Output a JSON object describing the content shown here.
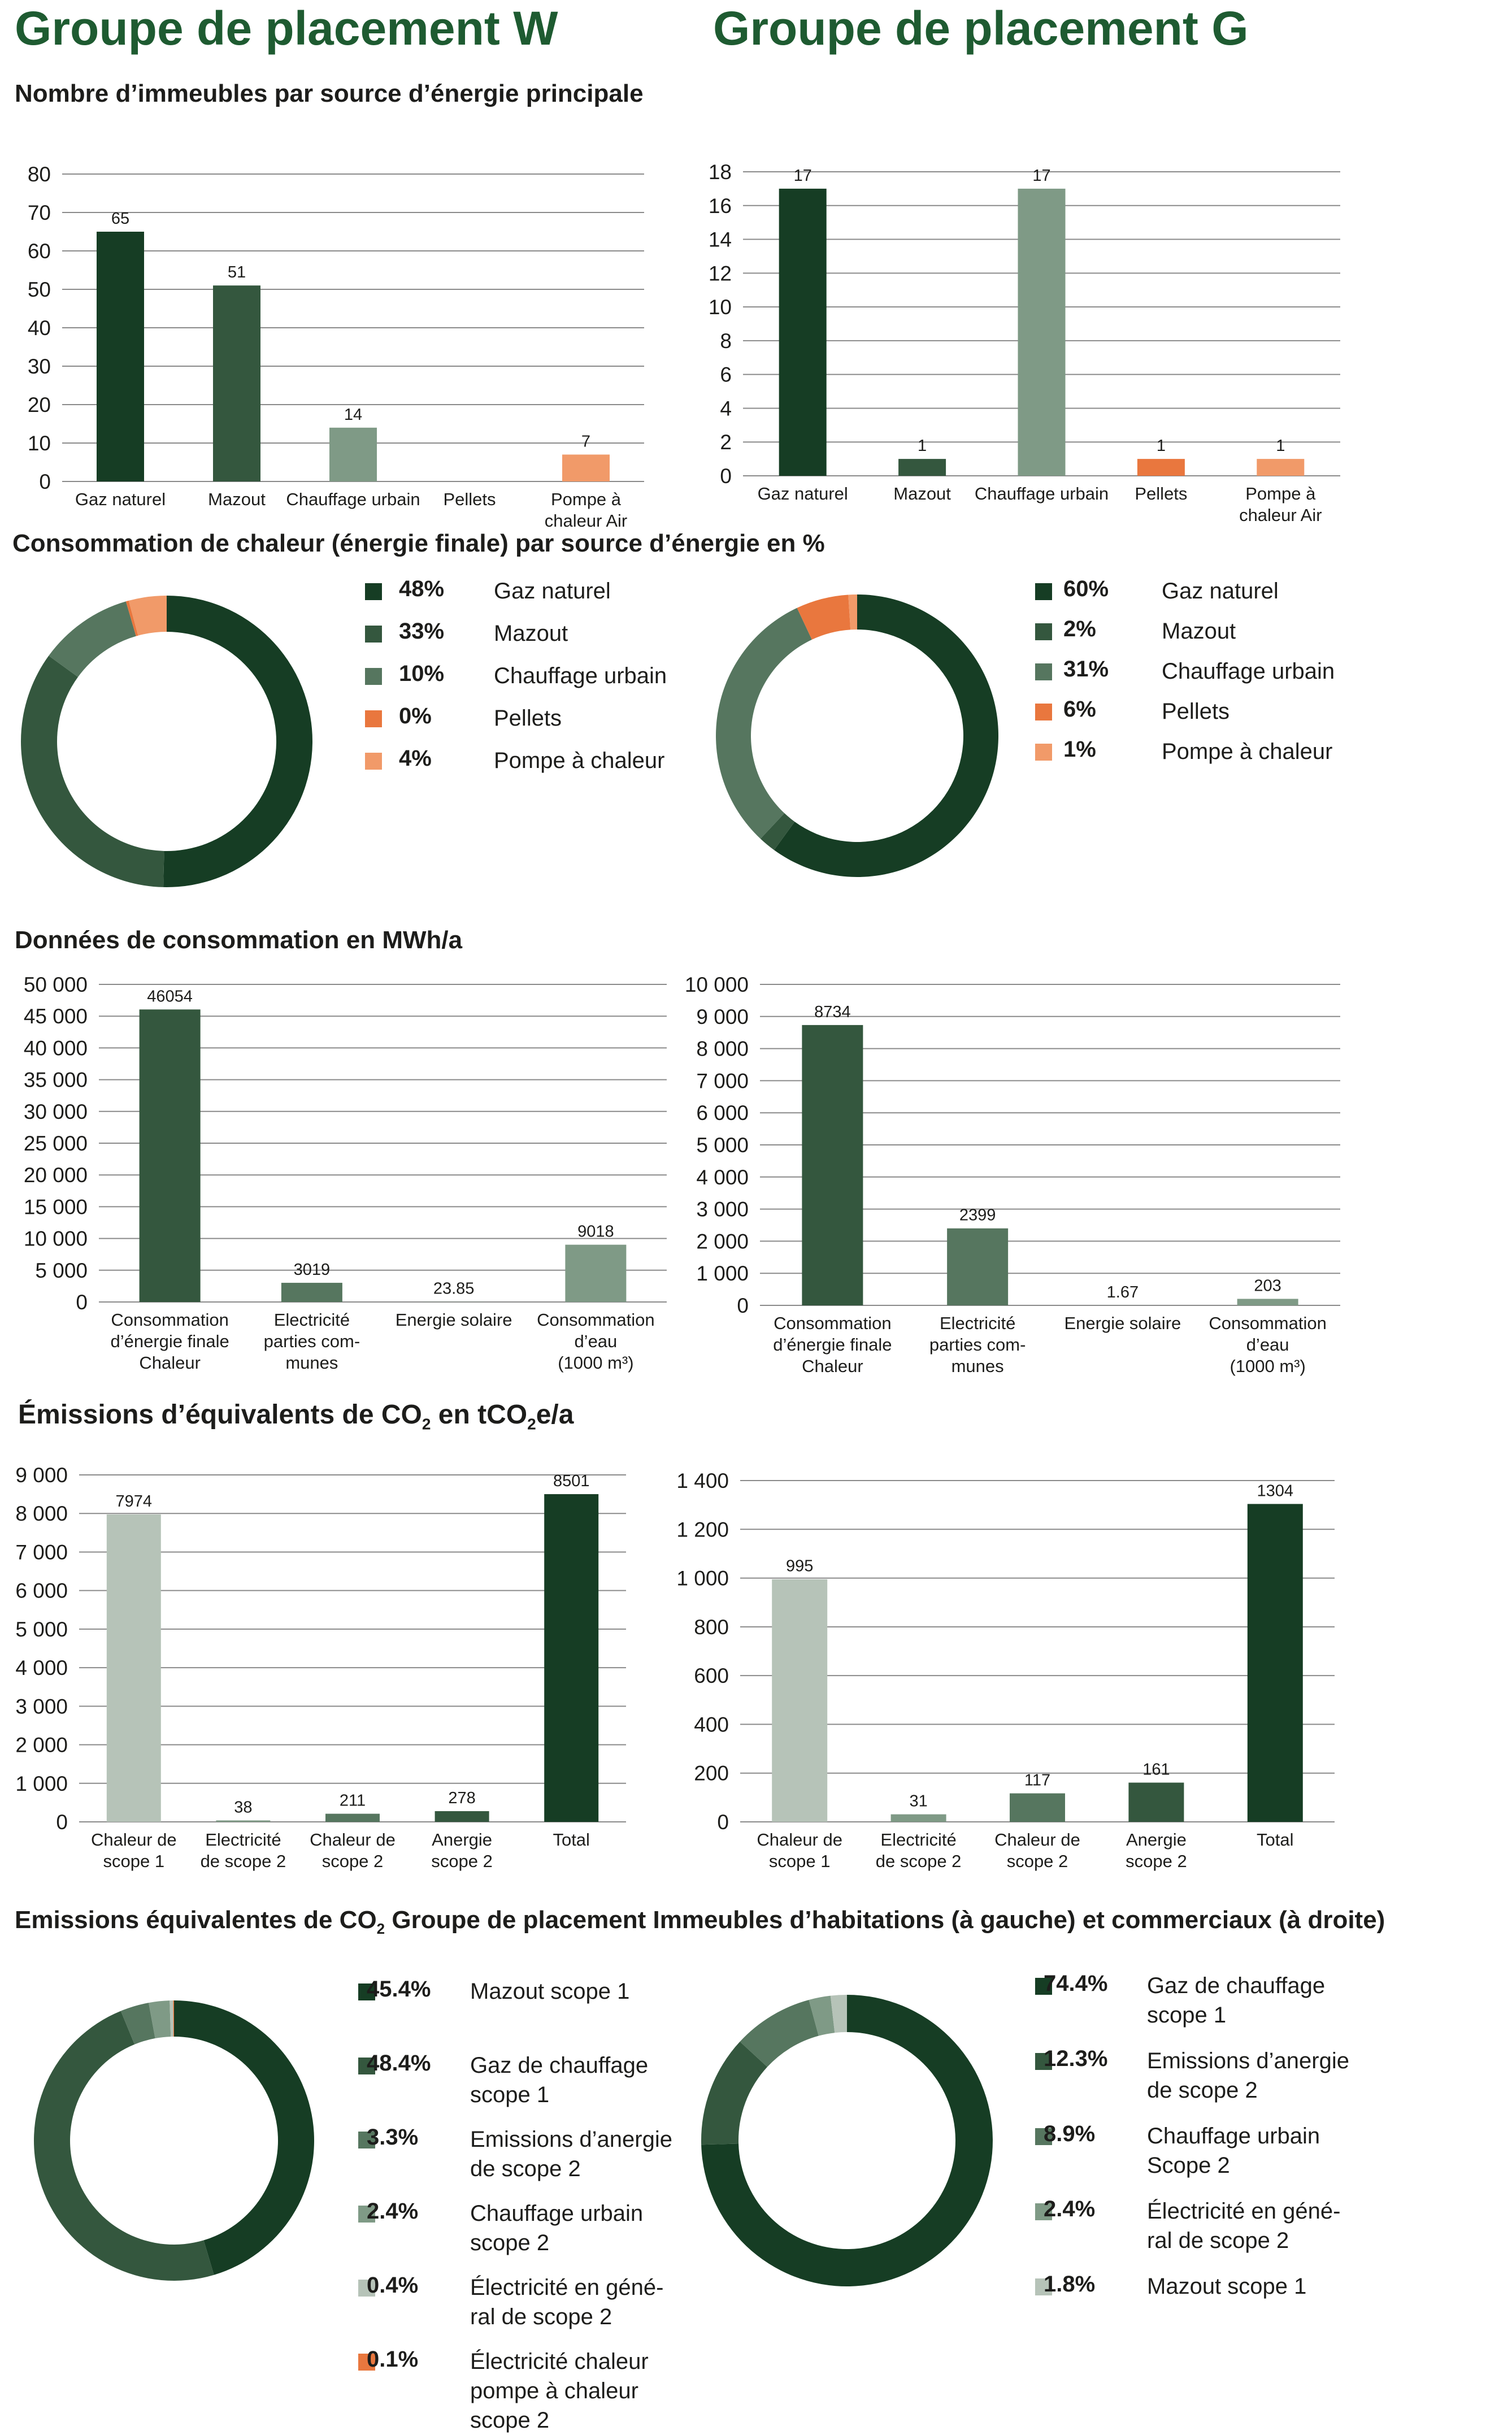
{
  "titles": {
    "left": "Groupe de placement W",
    "right": "Groupe de placement G"
  },
  "sections": {
    "buildings": "Nombre d’immeubles par source d’énergie principale",
    "heat": "Consommation de chaleur (énergie finale) par source d’énergie en %",
    "consumption": "Données de consommation en MWh/a",
    "emissions_prefix": "Émissions d’équivalents de CO",
    "emissions_mid": " en tCO",
    "emissions_suffix": "e/a",
    "emissions_split_prefix": "Emissions équivalentes de CO",
    "emissions_split_suffix": " Groupe de placement Immeubles d’habitations (à gauche) et commerciaux (à droite)",
    "subscript_two": "2"
  },
  "colors": {
    "dark_green": "#163d24",
    "green": "#34573e",
    "mid_green": "#56765f",
    "sage": "#7f9a86",
    "light_sage": "#b6c3b8",
    "orange": "#e9773e",
    "light_orange": "#f19a69"
  },
  "chart_data": [
    {
      "id": "w_buildings",
      "type": "bar",
      "categories": [
        [
          "Gaz naturel"
        ],
        [
          "Mazout"
        ],
        [
          "Chauffage urbain"
        ],
        [
          "Pellets"
        ],
        [
          "Pompe à",
          "chaleur Air"
        ]
      ],
      "values": [
        65,
        51,
        14,
        0,
        7
      ],
      "value_labels": [
        "65",
        "51",
        "14",
        "",
        "7"
      ],
      "colors": [
        "#163d24",
        "#34573e",
        "#7f9a86",
        "#e9773e",
        "#f19a69"
      ],
      "ylim": [
        0,
        80
      ],
      "yticks": [
        0,
        10,
        20,
        30,
        40,
        50,
        60,
        70,
        80
      ],
      "grid": true
    },
    {
      "id": "g_buildings",
      "type": "bar",
      "categories": [
        [
          "Gaz naturel"
        ],
        [
          "Mazout"
        ],
        [
          "Chauffage urbain"
        ],
        [
          "Pellets"
        ],
        [
          "Pompe à",
          "chaleur Air"
        ]
      ],
      "values": [
        17,
        1,
        17,
        1,
        1
      ],
      "value_labels": [
        "17",
        "1",
        "17",
        "1",
        "1"
      ],
      "colors": [
        "#163d24",
        "#34573e",
        "#7f9a86",
        "#e9773e",
        "#f19a69"
      ],
      "ylim": [
        0,
        18
      ],
      "yticks": [
        0,
        2,
        4,
        6,
        8,
        10,
        12,
        14,
        16,
        18
      ],
      "grid": true
    },
    {
      "id": "w_heat",
      "type": "pie",
      "labels": [
        "Gaz naturel",
        "Mazout",
        "Chauffage urbain",
        "Pellets",
        "Pompe à chaleur"
      ],
      "label_text": [
        "48%",
        "33%",
        "10%",
        "0%",
        "4%"
      ],
      "values": [
        48,
        33,
        10,
        0.3,
        4
      ],
      "colors": [
        "#163d24",
        "#34573e",
        "#56765f",
        "#e9773e",
        "#f19a69"
      ]
    },
    {
      "id": "g_heat",
      "type": "pie",
      "labels": [
        "Gaz naturel",
        "Mazout",
        "Chauffage urbain",
        "Pellets",
        "Pompe à chaleur"
      ],
      "label_text": [
        "60%",
        "2%",
        "31%",
        "6%",
        "1%"
      ],
      "values": [
        60,
        2,
        31,
        6,
        1
      ],
      "colors": [
        "#163d24",
        "#34573e",
        "#56765f",
        "#e9773e",
        "#f19a69"
      ]
    },
    {
      "id": "w_consumption",
      "type": "bar",
      "categories": [
        [
          "Consommation",
          "d’énergie finale",
          "Chaleur"
        ],
        [
          "Electricité",
          "parties com-",
          "munes"
        ],
        [
          "Energie solaire"
        ],
        [
          "Consommation",
          "d’eau",
          "(1000 m³)"
        ]
      ],
      "values": [
        46054,
        3019,
        23.85,
        9018
      ],
      "value_labels": [
        "46054",
        "3019",
        "23.85",
        "9018"
      ],
      "colors": [
        "#34573e",
        "#56765f",
        "#7f9a86",
        "#7f9a86"
      ],
      "ylim": [
        0,
        50000
      ],
      "yticks": [
        0,
        5000,
        10000,
        15000,
        20000,
        25000,
        30000,
        35000,
        40000,
        45000,
        50000
      ],
      "ytick_labels": [
        "0",
        "5 000",
        "10 000",
        "15 000",
        "20 000",
        "25 000",
        "30 000",
        "35 000",
        "40 000",
        "45 000",
        "50 000"
      ],
      "grid": true
    },
    {
      "id": "g_consumption",
      "type": "bar",
      "categories": [
        [
          "Consommation",
          "d’énergie finale",
          "Chaleur"
        ],
        [
          "Electricité",
          "parties com-",
          "munes"
        ],
        [
          "Energie solaire"
        ],
        [
          "Consommation",
          "d’eau",
          "(1000 m³)"
        ]
      ],
      "values": [
        8734,
        2399,
        1.67,
        203
      ],
      "value_labels": [
        "8734",
        "2399",
        "1.67",
        "203"
      ],
      "colors": [
        "#34573e",
        "#56765f",
        "#7f9a86",
        "#7f9a86"
      ],
      "ylim": [
        0,
        10000
      ],
      "yticks": [
        0,
        1000,
        2000,
        3000,
        4000,
        5000,
        6000,
        7000,
        8000,
        9000,
        10000
      ],
      "ytick_labels": [
        "0",
        "1 000",
        "2 000",
        "3 000",
        "4 000",
        "5 000",
        "6 000",
        "7 000",
        "8 000",
        "9 000",
        "10 000"
      ],
      "grid": true
    },
    {
      "id": "w_emissions",
      "type": "bar",
      "categories": [
        [
          "Chaleur de",
          "scope 1"
        ],
        [
          "Electricité",
          "de scope 2"
        ],
        [
          "Chaleur de",
          "scope 2"
        ],
        [
          "Anergie",
          "scope 2"
        ],
        [
          "Total"
        ]
      ],
      "values": [
        7974,
        38,
        211,
        278,
        8501
      ],
      "value_labels": [
        "7974",
        "38",
        "211",
        "278",
        "8501"
      ],
      "colors": [
        "#b6c3b8",
        "#7f9a86",
        "#56765f",
        "#34573e",
        "#163d24"
      ],
      "ylim": [
        0,
        9000
      ],
      "yticks": [
        0,
        1000,
        2000,
        3000,
        4000,
        5000,
        6000,
        7000,
        8000,
        9000
      ],
      "ytick_labels": [
        "0",
        "1 000",
        "2 000",
        "3 000",
        "4 000",
        "5 000",
        "6 000",
        "7 000",
        "8 000",
        "9 000"
      ],
      "grid": true
    },
    {
      "id": "g_emissions",
      "type": "bar",
      "categories": [
        [
          "Chaleur de",
          "scope 1"
        ],
        [
          "Electricité",
          "de scope 2"
        ],
        [
          "Chaleur de",
          "scope 2"
        ],
        [
          "Anergie",
          "scope 2"
        ],
        [
          "Total"
        ]
      ],
      "values": [
        995,
        31,
        117,
        161,
        1304
      ],
      "value_labels": [
        "995",
        "31",
        "117",
        "161",
        "1304"
      ],
      "colors": [
        "#b6c3b8",
        "#7f9a86",
        "#56765f",
        "#34573e",
        "#163d24"
      ],
      "ylim": [
        0,
        1400
      ],
      "yticks": [
        0,
        200,
        400,
        600,
        800,
        1000,
        1200,
        1400
      ],
      "ytick_labels": [
        "0",
        "200",
        "400",
        "600",
        "800",
        "1 000",
        "1 200",
        "1 400"
      ],
      "grid": true
    },
    {
      "id": "w_split",
      "type": "pie",
      "labels": [
        "Mazout scope 1",
        "Gaz de chauffage\nscope 1",
        "Emissions d’anergie\nde scope 2",
        "Chauffage urbain\nscope 2",
        "Électricité en géné-\nral de scope 2",
        "Électricité chaleur\npompe à chaleur\nscope 2"
      ],
      "label_text": [
        "45.4%",
        "48.4%",
        "3.3%",
        "2.4%",
        "0.4%",
        "0.1%"
      ],
      "values": [
        45.4,
        48.4,
        3.3,
        2.4,
        0.4,
        0.1
      ],
      "colors": [
        "#163d24",
        "#34573e",
        "#56765f",
        "#7f9a86",
        "#b6c3b8",
        "#e9773e"
      ]
    },
    {
      "id": "g_split",
      "type": "pie",
      "labels": [
        "Gaz de chauffage\nscope 1",
        "Emissions d’anergie\nde scope 2",
        "Chauffage urbain\nScope 2",
        "Électricité en géné-\nral de scope 2",
        "Mazout scope 1"
      ],
      "label_text": [
        "74.4%",
        "12.3%",
        "8.9%",
        "2.4%",
        "1.8%"
      ],
      "values": [
        74.4,
        12.3,
        8.9,
        2.4,
        1.8
      ],
      "colors": [
        "#163d24",
        "#34573e",
        "#56765f",
        "#7f9a86",
        "#b6c3b8"
      ]
    }
  ]
}
